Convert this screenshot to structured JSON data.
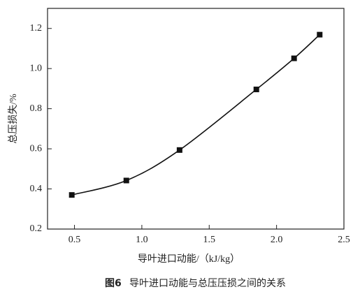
{
  "chart_data": {
    "type": "line",
    "figure_label": "图6",
    "title": "导叶进口动能与总压压损之间的关系",
    "x_label": "导叶进口动能/（kJ/kg）",
    "y_label": "总压损失/%",
    "series": [
      {
        "name": "总压损失",
        "color": "#111111",
        "x": [
          0.48,
          0.885,
          1.28,
          1.85,
          2.13,
          2.32
        ],
        "values": [
          0.37,
          0.442,
          0.594,
          0.896,
          1.051,
          1.169
        ]
      }
    ],
    "xlim": [
      0.3,
      2.5
    ],
    "xticks": [
      0.5,
      {
        "value": 1.0,
        "label": "1.0"
      },
      1.5,
      {
        "value": 2.0,
        "label": "2.0"
      },
      2.5
    ],
    "ylim": [
      0.2,
      1.3
    ],
    "yticks": [
      0.2,
      0.4,
      0.6,
      0.8,
      {
        "value": 1.0,
        "label": "1.0"
      },
      1.2
    ],
    "grid": false
  }
}
